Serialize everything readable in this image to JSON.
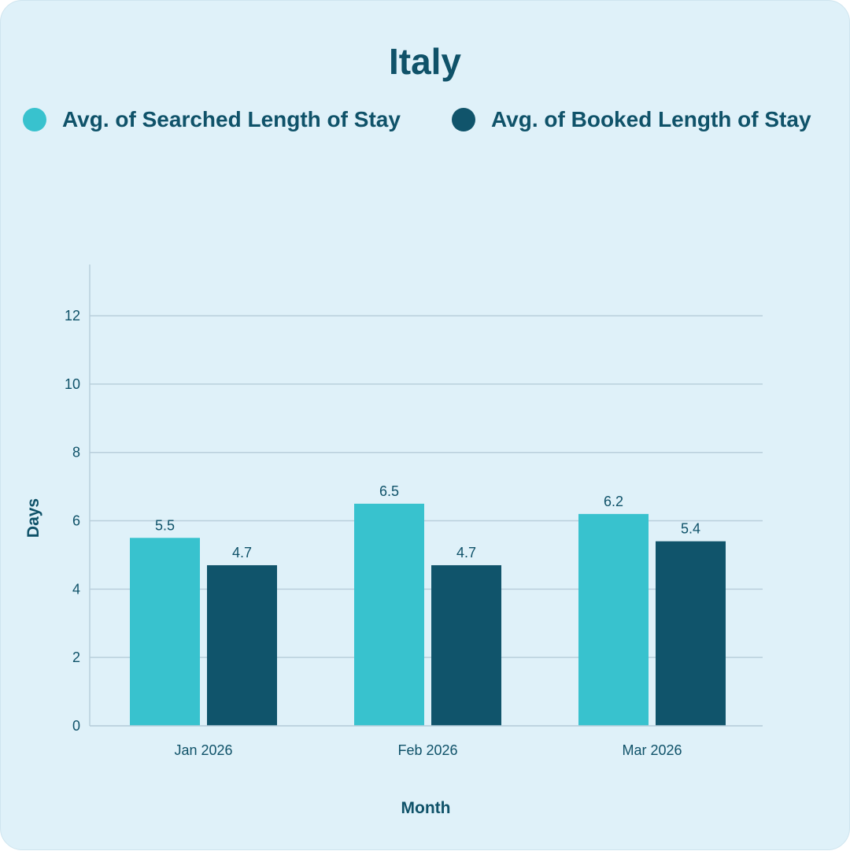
{
  "colors": {
    "background": "#dff1f9",
    "text": "#0f5269",
    "grid": "#b9cfdc",
    "searched": "#38c2ce",
    "booked": "#10546b"
  },
  "chart_data": {
    "type": "bar",
    "title": "Italy",
    "categories": [
      "Jan 2026",
      "Feb 2026",
      "Mar 2026"
    ],
    "series": [
      {
        "name": "Avg. of Searched Length of Stay",
        "values": [
          5.5,
          6.5,
          6.2
        ]
      },
      {
        "name": "Avg. of Booked Length of Stay",
        "values": [
          4.7,
          4.7,
          5.4
        ]
      }
    ],
    "data_labels": [
      [
        "5.5",
        "6.5",
        "6.2"
      ],
      [
        "4.7",
        "4.7",
        "5.4"
      ]
    ],
    "xlabel": "Month",
    "ylabel": "Days",
    "ylim": [
      0,
      13.5
    ],
    "yticks": [
      0,
      2,
      4,
      6,
      8,
      10,
      12
    ],
    "grid": true,
    "legend": "top"
  }
}
